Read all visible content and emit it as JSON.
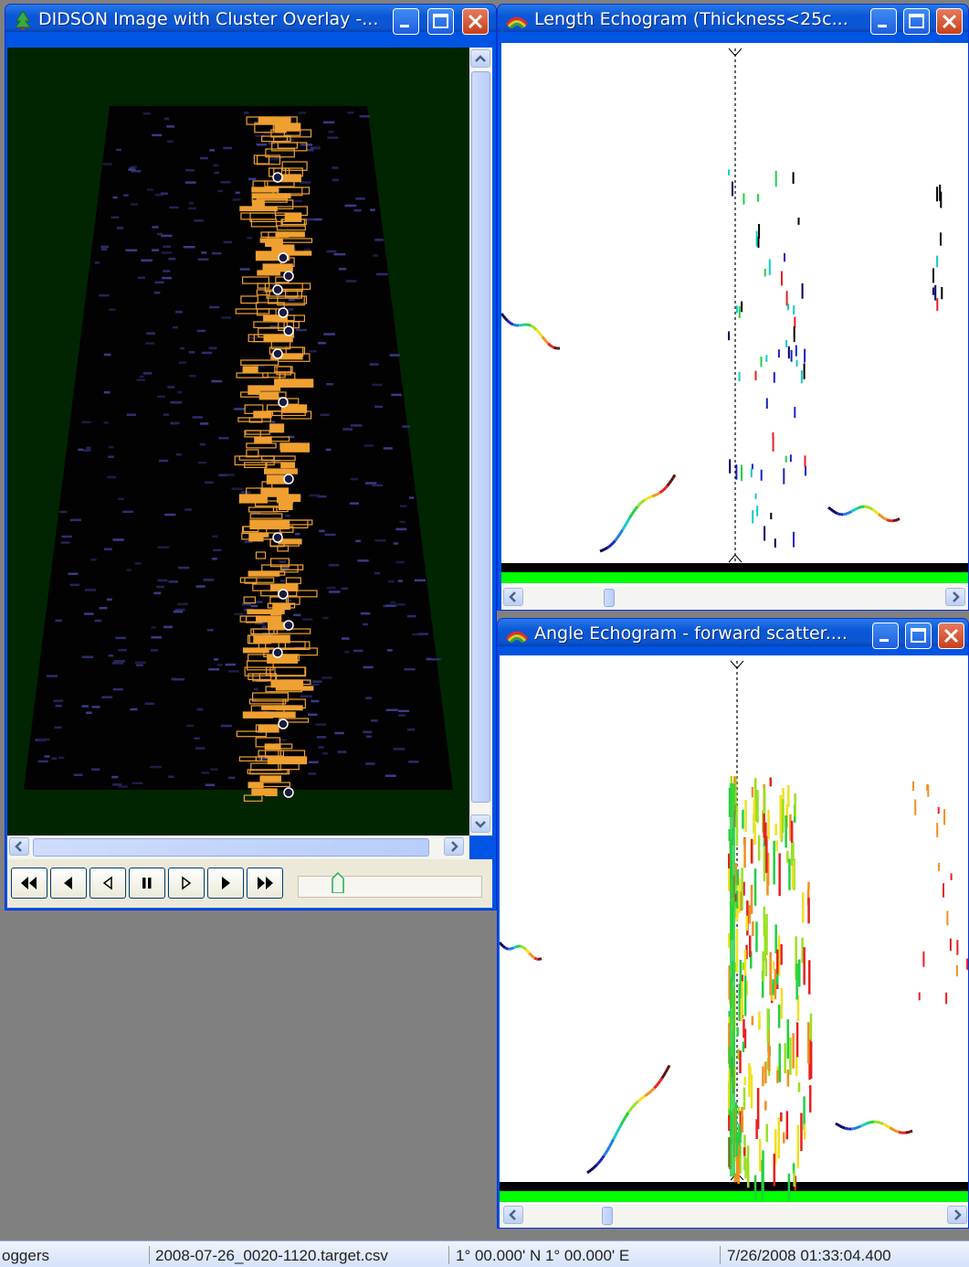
{
  "windows": {
    "didson": {
      "title": "DIDSON Image with Cluster Overlay -..."
    },
    "length": {
      "title": "Length Echogram (Thickness<25c..."
    },
    "angle": {
      "title": "Angle Echogram - forward scatter...."
    }
  },
  "playback": {
    "buttons": [
      "fast-rewind",
      "step-back-full",
      "step-back-frame",
      "pause",
      "step-forward-frame",
      "step-forward-full",
      "fast-forward"
    ]
  },
  "statusbar": {
    "pane1": "oggers",
    "pane2": "2008-07-26_0020-1120.target.csv",
    "pane3": "1° 00.000' N 1° 00.000' E",
    "pane4": "7/26/2008 01:33:04.400"
  },
  "colors": {
    "titlebar": "#0a58d8",
    "echogram_bottom_band": "#00ff00",
    "sonar_box": "#f0a030",
    "sonar_bg": "#012501"
  }
}
